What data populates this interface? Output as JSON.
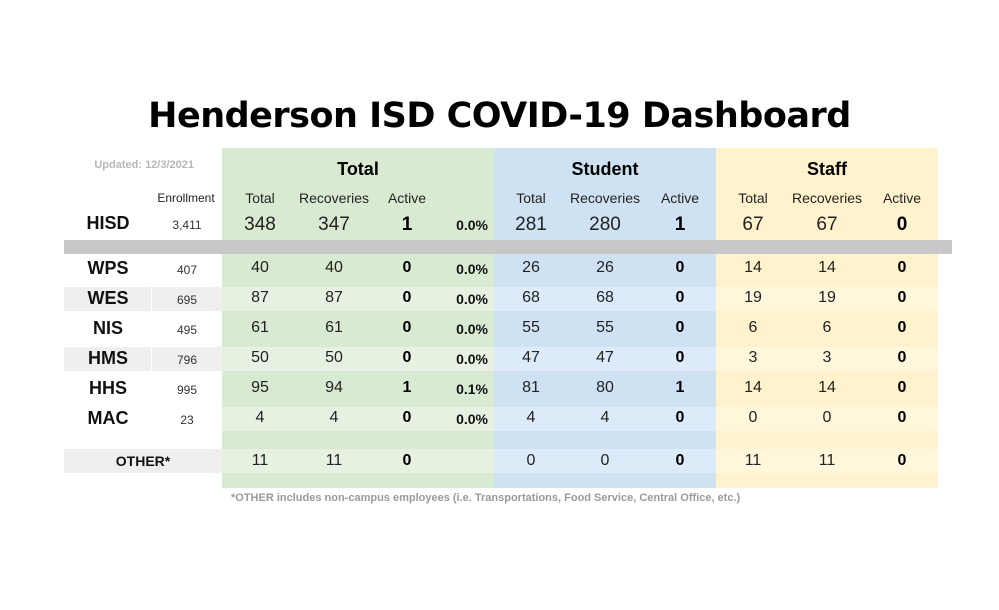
{
  "title": "Henderson ISD COVID-19 Dashboard",
  "updated": "Updated: 12/3/2021",
  "groups": {
    "total": "Total",
    "student": "Student",
    "staff": "Staff"
  },
  "column_headers": {
    "enrollment": "Enrollment",
    "total": "Total",
    "recoveries": "Recoveries",
    "active": "Active"
  },
  "district": {
    "name": "HISD",
    "enrollment": "3,411",
    "total": {
      "total": "348",
      "recoveries": "347",
      "active": "1",
      "pct": "0.0%"
    },
    "student": {
      "total": "281",
      "recoveries": "280",
      "active": "1"
    },
    "staff": {
      "total": "67",
      "recoveries": "67",
      "active": "0"
    }
  },
  "schools": [
    {
      "name": "WPS",
      "enrollment": "407",
      "total": {
        "total": "40",
        "recoveries": "40",
        "active": "0",
        "pct": "0.0%"
      },
      "student": {
        "total": "26",
        "recoveries": "26",
        "active": "0"
      },
      "staff": {
        "total": "14",
        "recoveries": "14",
        "active": "0"
      }
    },
    {
      "name": "WES",
      "enrollment": "695",
      "total": {
        "total": "87",
        "recoveries": "87",
        "active": "0",
        "pct": "0.0%"
      },
      "student": {
        "total": "68",
        "recoveries": "68",
        "active": "0"
      },
      "staff": {
        "total": "19",
        "recoveries": "19",
        "active": "0"
      }
    },
    {
      "name": "NIS",
      "enrollment": "495",
      "total": {
        "total": "61",
        "recoveries": "61",
        "active": "0",
        "pct": "0.0%"
      },
      "student": {
        "total": "55",
        "recoveries": "55",
        "active": "0"
      },
      "staff": {
        "total": "6",
        "recoveries": "6",
        "active": "0"
      }
    },
    {
      "name": "HMS",
      "enrollment": "796",
      "total": {
        "total": "50",
        "recoveries": "50",
        "active": "0",
        "pct": "0.0%"
      },
      "student": {
        "total": "47",
        "recoveries": "47",
        "active": "0"
      },
      "staff": {
        "total": "3",
        "recoveries": "3",
        "active": "0"
      }
    },
    {
      "name": "HHS",
      "enrollment": "995",
      "total": {
        "total": "95",
        "recoveries": "94",
        "active": "1",
        "pct": "0.1%"
      },
      "student": {
        "total": "81",
        "recoveries": "80",
        "active": "1"
      },
      "staff": {
        "total": "14",
        "recoveries": "14",
        "active": "0"
      }
    },
    {
      "name": "MAC",
      "enrollment": "23",
      "total": {
        "total": "4",
        "recoveries": "4",
        "active": "0",
        "pct": "0.0%"
      },
      "student": {
        "total": "4",
        "recoveries": "4",
        "active": "0"
      },
      "staff": {
        "total": "0",
        "recoveries": "0",
        "active": "0"
      }
    }
  ],
  "other": {
    "name": "OTHER*",
    "total": {
      "total": "11",
      "recoveries": "11",
      "active": "0"
    },
    "student": {
      "total": "0",
      "recoveries": "0",
      "active": "0"
    },
    "staff": {
      "total": "11",
      "recoveries": "11",
      "active": "0"
    }
  },
  "footnote": "*OTHER includes non-campus employees (i.e. Transportations, Food Service, Central Office, etc.)",
  "colors": {
    "total_bg": "#d9ead3",
    "student_bg": "#cfe2f3",
    "staff_bg": "#fff2cc",
    "divider": "#c8c8c8"
  }
}
